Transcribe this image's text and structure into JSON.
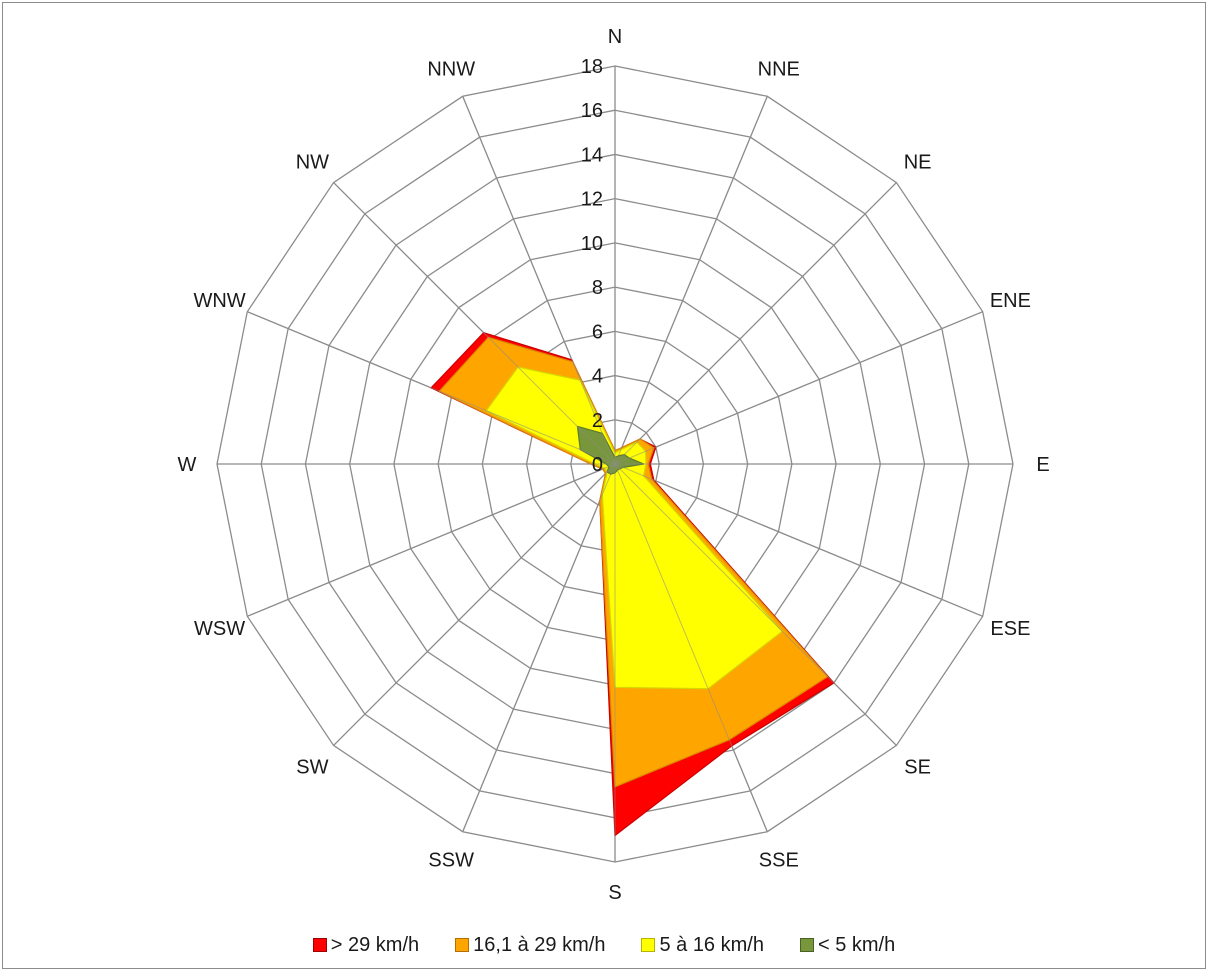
{
  "chart_data": {
    "type": "radar",
    "title": "",
    "categories": [
      "N",
      "NNE",
      "NE",
      "ENE",
      "E",
      "ESE",
      "SE",
      "SSE",
      "S",
      "SSW",
      "SW",
      "WSW",
      "W",
      "WNW",
      "NW",
      "NNW"
    ],
    "radial_ticks": [
      "0",
      "2",
      "4",
      "6",
      "8",
      "10",
      "12",
      "14",
      "16",
      "18"
    ],
    "rlim": [
      0,
      18
    ],
    "grid": true,
    "legend_position": "bottom",
    "series": [
      {
        "name": "> 29 km/h",
        "color": "#ff0000",
        "values": [
          0.6,
          0.8,
          1.6,
          2.0,
          1.6,
          1.9,
          14.0,
          13.8,
          16.8,
          1.8,
          0.6,
          0.6,
          1.1,
          9.0,
          8.4,
          5.1
        ]
      },
      {
        "name": "16,1 à 29 km/h",
        "color": "#ffa500",
        "values": [
          0.6,
          0.8,
          1.6,
          1.9,
          1.5,
          1.8,
          13.6,
          13.5,
          14.6,
          1.8,
          0.6,
          0.6,
          1.1,
          8.6,
          8.1,
          5.0
        ]
      },
      {
        "name": "5 à 16 km/h",
        "color": "#ffff00",
        "values": [
          0.5,
          0.7,
          1.4,
          1.5,
          1.4,
          1.4,
          10.7,
          11.0,
          10.1,
          1.5,
          0.5,
          0.5,
          0.9,
          6.3,
          6.2,
          4.1
        ]
      },
      {
        "name": "< 5 km/h",
        "color": "#78963c",
        "values": [
          0.3,
          0.4,
          0.6,
          0.7,
          1.3,
          0.4,
          0.3,
          0.3,
          0.4,
          0.5,
          0.5,
          0.3,
          0.4,
          1.7,
          2.4,
          1.5
        ]
      }
    ]
  }
}
